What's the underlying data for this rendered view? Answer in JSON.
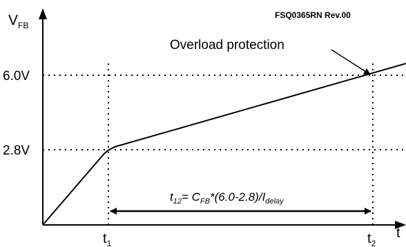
{
  "figure_tag": "FSQ0365RN Rev.00",
  "chart_data": {
    "type": "line",
    "title": "",
    "y_axis_label": {
      "main": "V",
      "sub": "FB"
    },
    "x_axis_label": "t",
    "y_levels": [
      {
        "value": 6.0,
        "label": "6.0V"
      },
      {
        "value": 2.8,
        "label": "2.8V"
      }
    ],
    "time_marks": [
      {
        "main": "t",
        "sub": "1"
      },
      {
        "main": "t",
        "sub": "2"
      }
    ],
    "curve_points": [
      {
        "t": 0,
        "v": 0
      },
      {
        "t": "t1",
        "v": 2.8
      },
      {
        "t": "t2",
        "v": 6.0
      }
    ],
    "annotation": "Overload protection",
    "formula": {
      "t_main": "t",
      "t_sub": "12",
      "eq": "= C",
      "c_sub": "FB",
      "mid": "*(6.0-2.8)/I",
      "i_sub": "delay"
    }
  }
}
